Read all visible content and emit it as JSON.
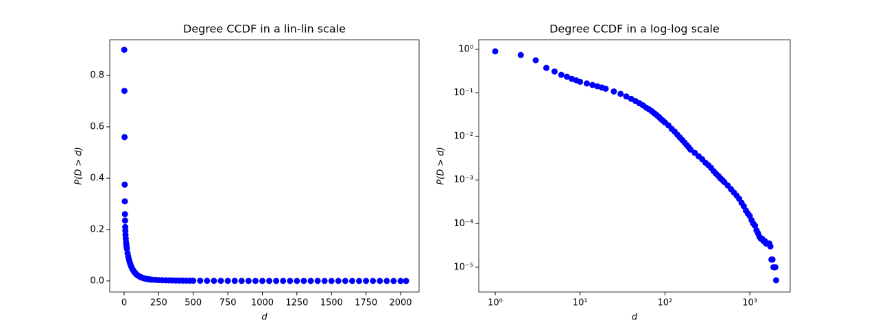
{
  "chart_data": [
    {
      "type": "scatter",
      "title": "Degree CCDF in a lin-lin scale",
      "xlabel": "d",
      "ylabel": "P(D > d)",
      "color": "#0000ff",
      "xscale": "linear",
      "yscale": "linear",
      "xlim": [
        -104,
        2134
      ],
      "ylim": [
        -0.043,
        0.939
      ],
      "xticks": [
        0,
        250,
        500,
        750,
        1000,
        1250,
        1500,
        1750,
        2000
      ],
      "yticks": [
        {
          "value": 0,
          "label": "0.0"
        },
        0.2,
        0.4,
        0.6,
        0.8
      ],
      "x": [
        1,
        2,
        3,
        4,
        5,
        6,
        7,
        8,
        9,
        10,
        12,
        14,
        16,
        18,
        20,
        25,
        30,
        35,
        40,
        45,
        50,
        55,
        60,
        65,
        70,
        75,
        80,
        85,
        90,
        95,
        100,
        110,
        120,
        130,
        140,
        150,
        160,
        170,
        180,
        190,
        200,
        225,
        250,
        275,
        300,
        325,
        350,
        375,
        400,
        425,
        450,
        475,
        500,
        550,
        600,
        650,
        700,
        750,
        800,
        850,
        900,
        950,
        1000,
        1050,
        1100,
        1150,
        1200,
        1250,
        1300,
        1350,
        1400,
        1450,
        1500,
        1550,
        1600,
        1650,
        1700,
        1750,
        1800,
        1850,
        1900,
        1950,
        2000,
        2040
      ],
      "values": [
        0.9,
        0.74,
        0.56,
        0.375,
        0.31,
        0.26,
        0.235,
        0.21,
        0.195,
        0.18,
        0.165,
        0.152,
        0.142,
        0.133,
        0.125,
        0.108,
        0.095,
        0.083,
        0.073,
        0.065,
        0.058,
        0.052,
        0.046,
        0.042,
        0.038,
        0.034,
        0.031,
        0.028,
        0.025,
        0.023,
        0.021,
        0.018,
        0.015,
        0.013,
        0.011,
        0.0095,
        0.0083,
        0.0073,
        0.0064,
        0.0057,
        0.005,
        0.0042,
        0.0035,
        0.003,
        0.0025,
        0.0022,
        0.0019,
        0.0016,
        0.0014,
        0.00125,
        0.0011,
        0.001,
        0.0009,
        0.00075,
        0.00062,
        0.00052,
        0.00044,
        0.00037,
        0.0003,
        0.00025,
        0.0002,
        0.00017,
        0.00015,
        0.00012,
        0.0001,
        9e-05,
        7e-05,
        6e-05,
        5e-05,
        4.5e-05,
        4.5e-05,
        4e-05,
        4e-05,
        3.5e-05,
        3.5e-05,
        3.5e-05,
        3.5e-05,
        3e-05,
        1.5e-05,
        1.5e-05,
        1e-05,
        1e-05,
        1e-05,
        5e-06
      ]
    },
    {
      "type": "scatter",
      "title": "Degree CCDF in a log-log scale",
      "xlabel": "d",
      "ylabel": "P(D > d)",
      "color": "#0000ff",
      "xscale": "log",
      "yscale": "log",
      "xlim": [
        0.64,
        2993
      ],
      "ylim": [
        2.7e-06,
        1.66
      ],
      "xticks": [
        {
          "value": 1,
          "label": "10⁰"
        },
        {
          "value": 10,
          "label": "10¹"
        },
        {
          "value": 100,
          "label": "10²"
        },
        {
          "value": 1000,
          "label": "10³"
        }
      ],
      "yticks": [
        {
          "value": 1e-05,
          "label": "10⁻⁵"
        },
        {
          "value": 0.0001,
          "label": "10⁻⁴"
        },
        {
          "value": 0.001,
          "label": "10⁻³"
        },
        {
          "value": 0.01,
          "label": "10⁻²"
        },
        {
          "value": 0.1,
          "label": "10⁻¹"
        },
        {
          "value": 1,
          "label": "10⁰"
        }
      ],
      "x": [
        1,
        2,
        3,
        4,
        5,
        6,
        7,
        8,
        9,
        10,
        12,
        14,
        16,
        18,
        20,
        25,
        30,
        35,
        40,
        45,
        50,
        55,
        60,
        65,
        70,
        75,
        80,
        85,
        90,
        95,
        100,
        110,
        120,
        130,
        140,
        150,
        160,
        170,
        180,
        190,
        200,
        225,
        250,
        275,
        300,
        325,
        350,
        375,
        400,
        425,
        450,
        475,
        500,
        550,
        600,
        650,
        700,
        750,
        800,
        850,
        900,
        950,
        1000,
        1050,
        1100,
        1150,
        1200,
        1250,
        1300,
        1350,
        1400,
        1450,
        1500,
        1550,
        1600,
        1650,
        1700,
        1750,
        1800,
        1850,
        1900,
        1950,
        2000,
        2040
      ],
      "values": [
        0.9,
        0.74,
        0.56,
        0.375,
        0.31,
        0.26,
        0.235,
        0.21,
        0.195,
        0.18,
        0.165,
        0.152,
        0.142,
        0.133,
        0.125,
        0.108,
        0.095,
        0.083,
        0.073,
        0.065,
        0.058,
        0.052,
        0.046,
        0.042,
        0.038,
        0.034,
        0.031,
        0.028,
        0.025,
        0.023,
        0.021,
        0.018,
        0.015,
        0.013,
        0.011,
        0.0095,
        0.0083,
        0.0073,
        0.0064,
        0.0057,
        0.005,
        0.0042,
        0.0035,
        0.003,
        0.0025,
        0.0022,
        0.0019,
        0.0016,
        0.0014,
        0.00125,
        0.0011,
        0.001,
        0.0009,
        0.00075,
        0.00062,
        0.00052,
        0.00044,
        0.00037,
        0.0003,
        0.00025,
        0.0002,
        0.00017,
        0.00015,
        0.00012,
        0.0001,
        9e-05,
        7e-05,
        6e-05,
        5e-05,
        4.5e-05,
        4.5e-05,
        4e-05,
        4e-05,
        3.5e-05,
        3.5e-05,
        3.5e-05,
        3.5e-05,
        3e-05,
        1.5e-05,
        1.5e-05,
        1e-05,
        1e-05,
        1e-05,
        5e-06
      ]
    }
  ]
}
